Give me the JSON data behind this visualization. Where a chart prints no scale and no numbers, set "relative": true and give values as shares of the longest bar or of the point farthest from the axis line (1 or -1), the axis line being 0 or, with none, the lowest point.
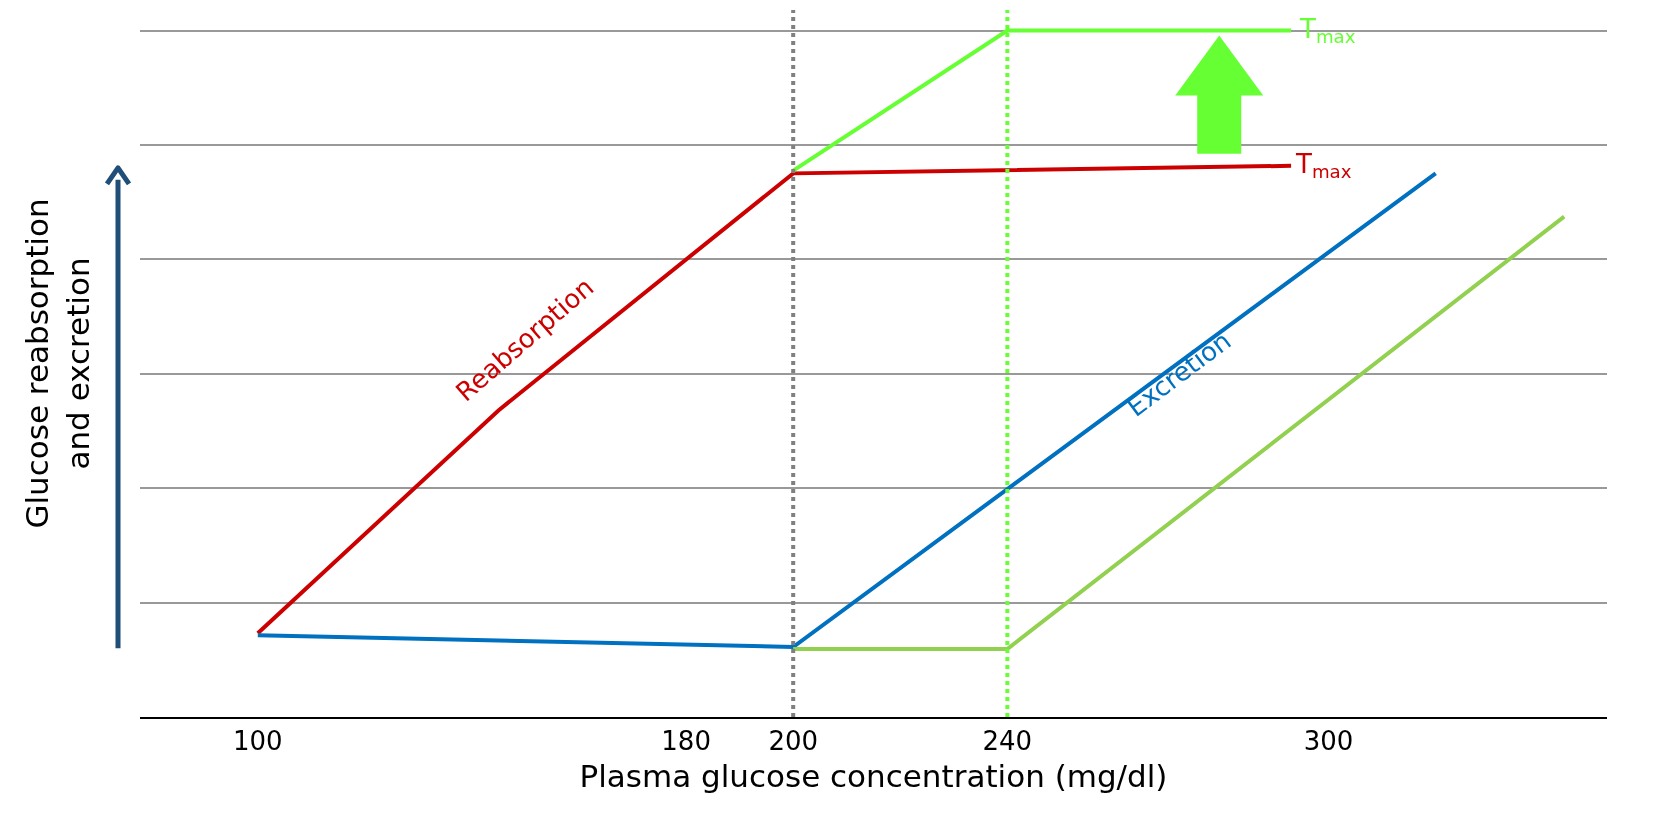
{
  "chart_data": {
    "type": "line",
    "relative": true,
    "xlabel": "Plasma glucose concentration (mg/dl)",
    "ylabel": "Glucose reabsorption\nand excretion",
    "xlim": [
      78,
      352
    ],
    "xticks": [
      100,
      180,
      200,
      240,
      300
    ],
    "grid": "y",
    "marker": "none",
    "line_style": "solid",
    "series": [
      {
        "color": "#cc0000",
        "x": [
          100,
          145,
          200,
          293
        ],
        "values": [
          0.122,
          0.447,
          0.792,
          0.803
        ]
      },
      {
        "color": "#0070c0",
        "x": [
          100,
          200,
          320
        ],
        "values": [
          0.119,
          0.102,
          0.792
        ]
      },
      {
        "color": "#92d050",
        "x": [
          200,
          240,
          344
        ],
        "values": [
          0.099,
          0.099,
          0.729
        ]
      },
      {
        "color": "#66ff33",
        "x": [
          200,
          240,
          293
        ],
        "values": [
          0.796,
          1.0,
          1.0
        ]
      }
    ],
    "ref_lines": [
      {
        "axis": "x",
        "value": 200,
        "color": "#808080",
        "line_style": "dotted"
      },
      {
        "axis": "x",
        "value": 240,
        "color": "#66ff33",
        "line_style": "dotted"
      }
    ],
    "annotations": [
      "Reabsorption",
      "Excretion",
      {
        "text": "T$_{max}$",
        "x": 293,
        "y": 0.803
      },
      {
        "text": "T$_{max}$",
        "x": 293,
        "y": 1.0
      }
    ]
  }
}
